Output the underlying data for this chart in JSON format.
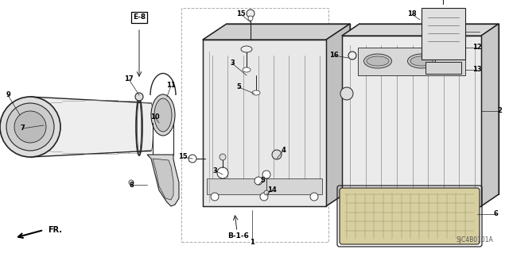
{
  "bg_color": "#ffffff",
  "line_color": "#222222",
  "text_color": "#000000",
  "part_number_code": "SJC4B0101A",
  "diagram_ref": "B-1-6",
  "e_ref": "E-8",
  "figsize": [
    6.4,
    3.19
  ],
  "dpi": 100
}
